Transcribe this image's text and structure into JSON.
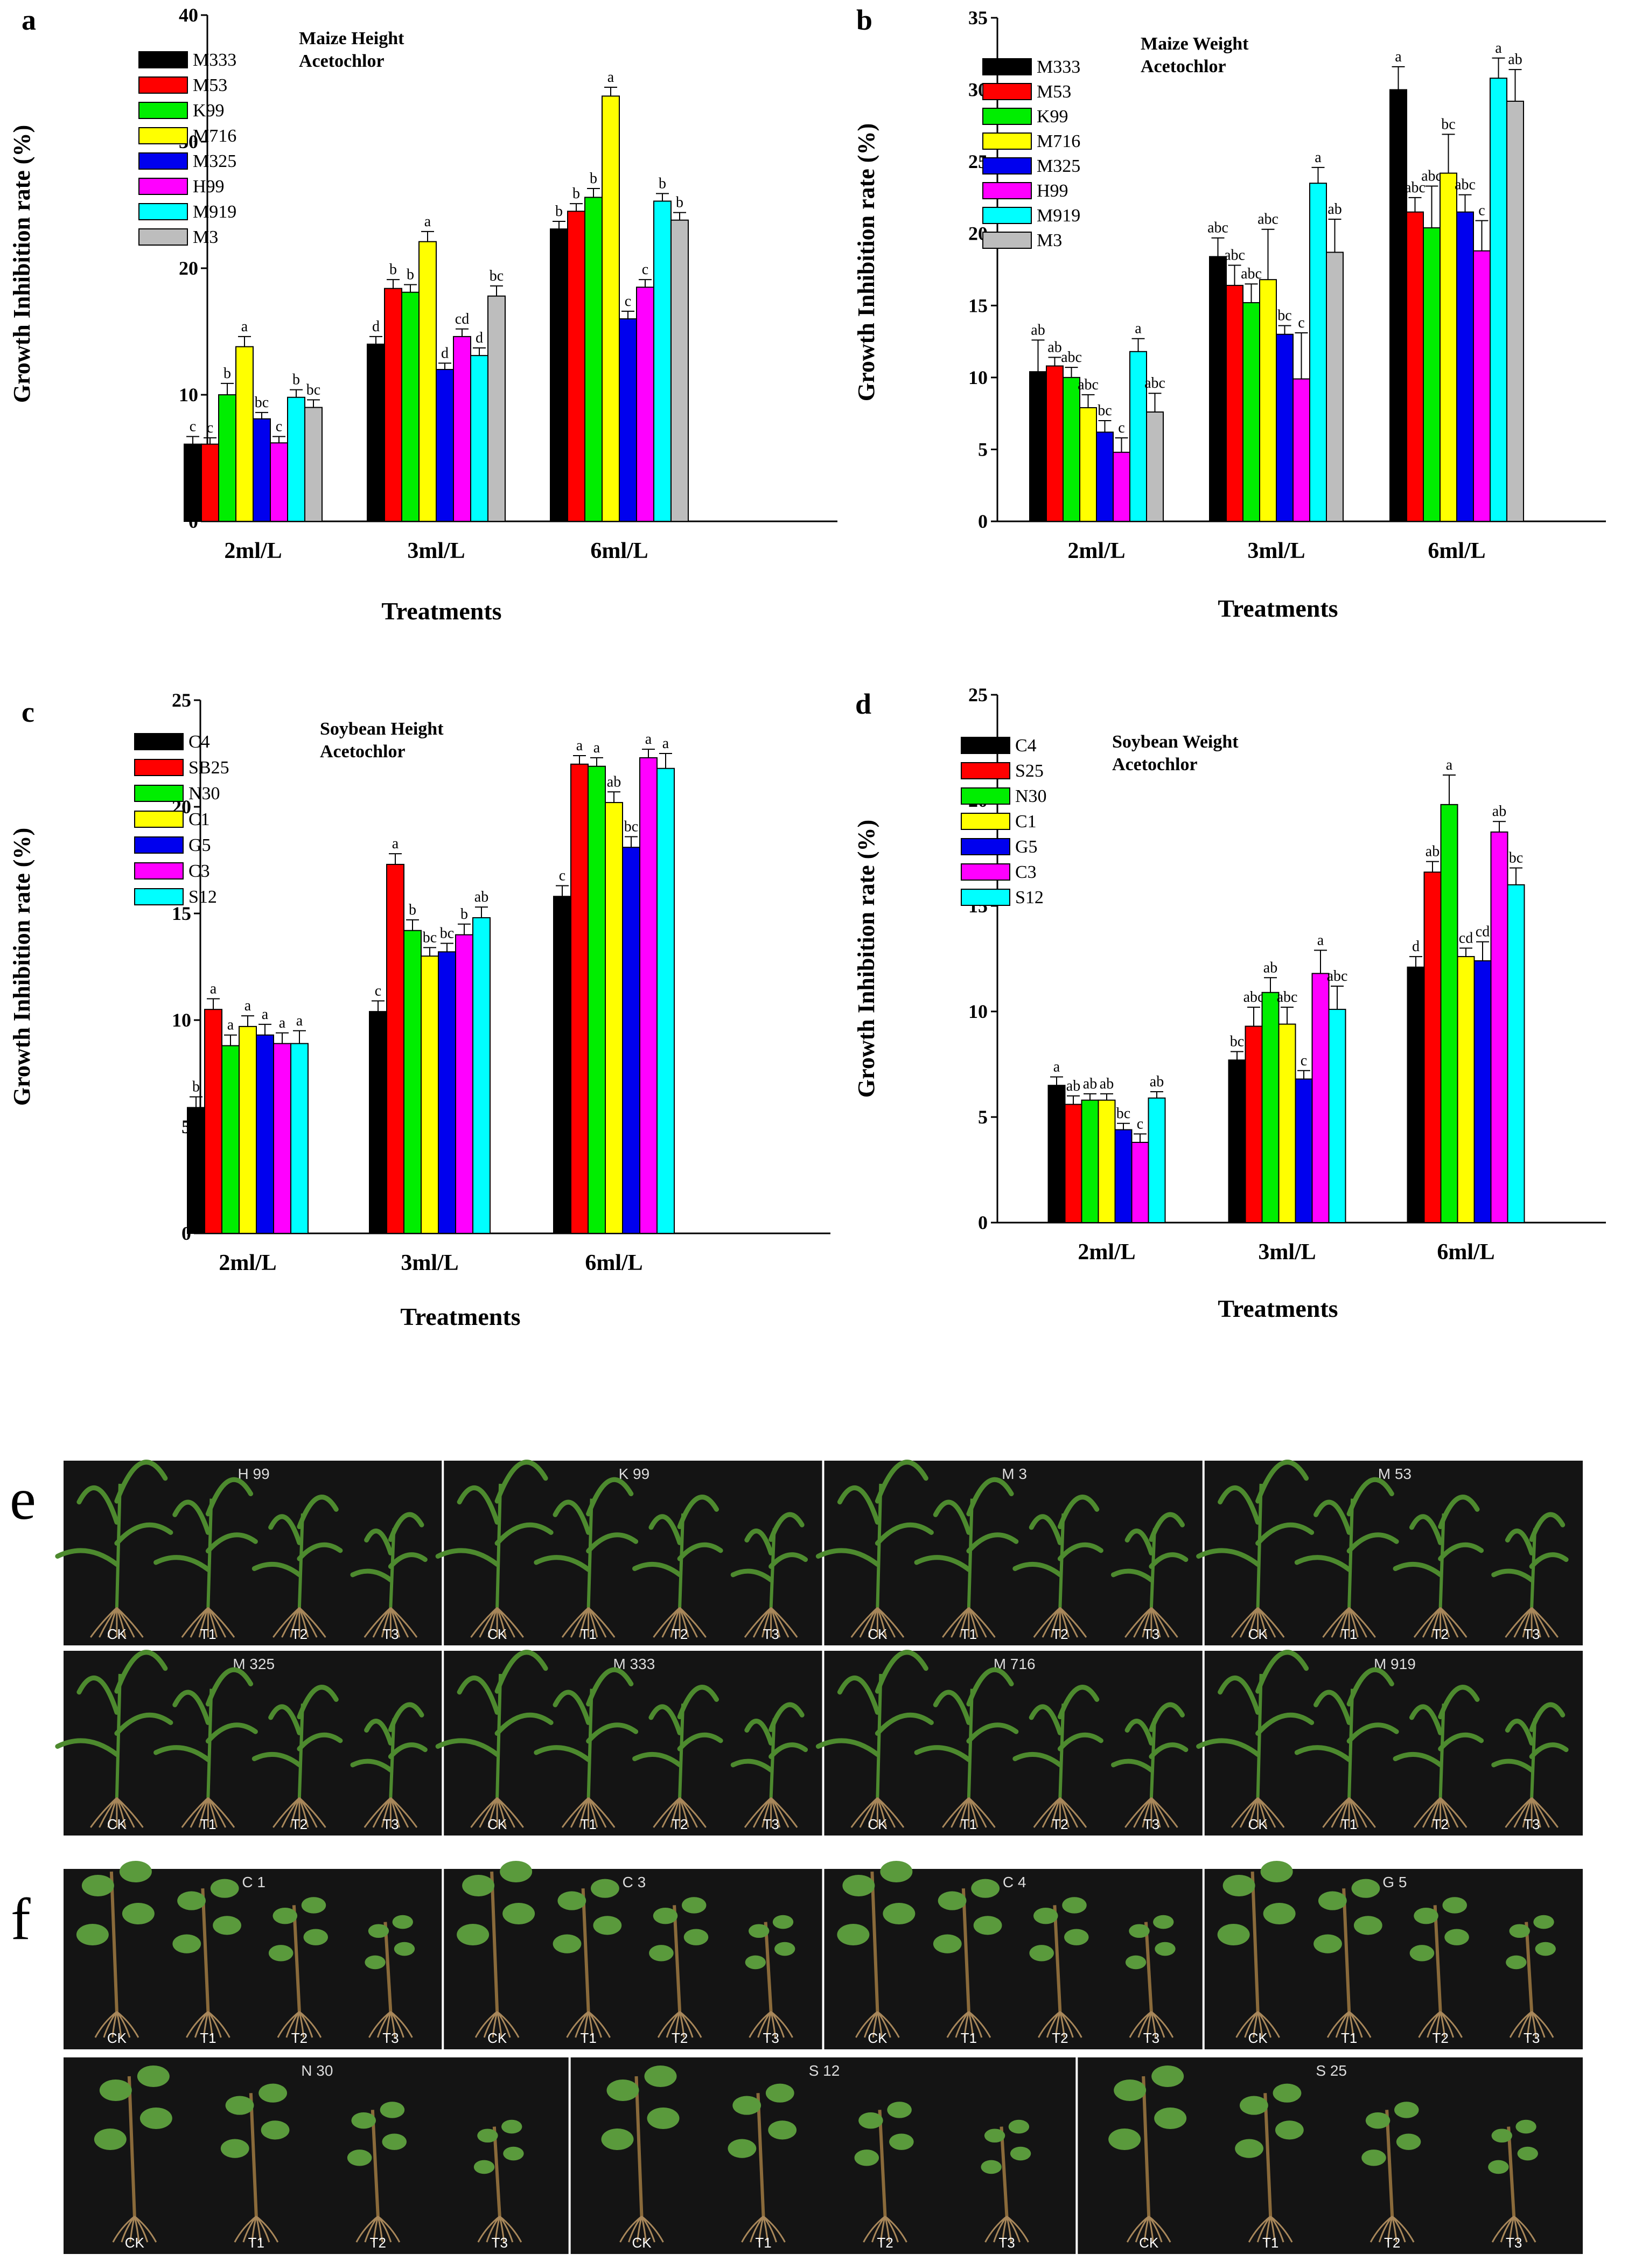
{
  "figure": {
    "colors": {
      "black": "#000000",
      "red": "#ff0000",
      "green": "#00ee00",
      "yellow": "#ffff00",
      "blue": "#0000ee",
      "magenta": "#ff00ff",
      "cyan": "#00ffff",
      "gray": "#bdbdbd",
      "photo_bg": "#141414",
      "leaf": "#4d8a2e",
      "soy_leaf": "#5a9a3c",
      "root": "#a8875a",
      "stem": "#8a6a3a"
    }
  },
  "chart_data": [
    {
      "panel": "a",
      "type": "bar",
      "title": "Maize Height\nAcetochlor",
      "xlabel": "Treatments",
      "ylabel": "Growth Inhibition rate (%)",
      "ylim": [
        0,
        40
      ],
      "ticks": [
        0,
        10,
        20,
        30,
        40
      ],
      "categories": [
        "2ml/L",
        "3ml/L",
        "6ml/L"
      ],
      "series": [
        {
          "name": "M333",
          "color": "#000000",
          "values": [
            6.1,
            14.0,
            23.1
          ],
          "errors": [
            0.6,
            0.6,
            0.6
          ],
          "letters": [
            "c",
            "d",
            "b"
          ]
        },
        {
          "name": "M53",
          "color": "#ff0000",
          "values": [
            6.1,
            18.4,
            24.5
          ],
          "errors": [
            0.5,
            0.7,
            0.6
          ],
          "letters": [
            "c",
            "b",
            "b"
          ]
        },
        {
          "name": "K99",
          "color": "#00ee00",
          "values": [
            10.0,
            18.1,
            25.6
          ],
          "errors": [
            0.9,
            0.6,
            0.7
          ],
          "letters": [
            "b",
            "b",
            "b"
          ]
        },
        {
          "name": "M716",
          "color": "#ffff00",
          "values": [
            13.8,
            22.1,
            33.6
          ],
          "errors": [
            0.8,
            0.8,
            0.7
          ],
          "letters": [
            "a",
            "a",
            "a"
          ]
        },
        {
          "name": "M325",
          "color": "#0000ee",
          "values": [
            8.1,
            12.0,
            16.0
          ],
          "errors": [
            0.5,
            0.5,
            0.6
          ],
          "letters": [
            "bc",
            "d",
            "c"
          ]
        },
        {
          "name": "H99",
          "color": "#ff00ff",
          "values": [
            6.2,
            14.6,
            18.5
          ],
          "errors": [
            0.5,
            0.6,
            0.6
          ],
          "letters": [
            "c",
            "cd",
            "c"
          ]
        },
        {
          "name": "M919",
          "color": "#00ffff",
          "values": [
            9.8,
            13.1,
            25.3
          ],
          "errors": [
            0.6,
            0.6,
            0.6
          ],
          "letters": [
            "b",
            "d",
            "b"
          ]
        },
        {
          "name": "M3",
          "color": "#bdbdbd",
          "values": [
            9.0,
            17.8,
            23.8
          ],
          "errors": [
            0.6,
            0.8,
            0.6
          ],
          "letters": [
            "bc",
            "bc",
            "b"
          ]
        }
      ]
    },
    {
      "panel": "b",
      "type": "bar",
      "title": "Maize Weight\nAcetochlor",
      "xlabel": "Treatments",
      "ylabel": "Growth Inhibition rate (%)",
      "ylim": [
        0,
        35
      ],
      "ticks": [
        0,
        5,
        10,
        15,
        20,
        25,
        30,
        35
      ],
      "categories": [
        "2ml/L",
        "3ml/L",
        "6ml/L"
      ],
      "series": [
        {
          "name": "M333",
          "color": "#000000",
          "values": [
            10.4,
            18.4,
            30.0
          ],
          "errors": [
            2.2,
            1.3,
            1.6
          ],
          "letters": [
            "ab",
            "abc",
            "a"
          ]
        },
        {
          "name": "M53",
          "color": "#ff0000",
          "values": [
            10.8,
            16.4,
            21.5
          ],
          "errors": [
            0.6,
            1.4,
            1.0
          ],
          "letters": [
            "ab",
            "abc",
            "abc"
          ]
        },
        {
          "name": "K99",
          "color": "#00ee00",
          "values": [
            10.0,
            15.2,
            20.4
          ],
          "errors": [
            0.7,
            1.3,
            2.9
          ],
          "letters": [
            "abc",
            "abc",
            "abc"
          ]
        },
        {
          "name": "M716",
          "color": "#ffff00",
          "values": [
            7.9,
            16.8,
            24.2
          ],
          "errors": [
            0.9,
            3.5,
            2.7
          ],
          "letters": [
            "abc",
            "abc",
            "bc"
          ]
        },
        {
          "name": "M325",
          "color": "#0000ee",
          "values": [
            6.2,
            13.0,
            21.5
          ],
          "errors": [
            0.8,
            0.6,
            1.2
          ],
          "letters": [
            "bc",
            "bc",
            "abc"
          ]
        },
        {
          "name": "H99",
          "color": "#ff00ff",
          "values": [
            4.8,
            9.9,
            18.8
          ],
          "errors": [
            1.0,
            3.2,
            2.1
          ],
          "letters": [
            "c",
            "c",
            "c"
          ]
        },
        {
          "name": "M919",
          "color": "#00ffff",
          "values": [
            11.8,
            23.5,
            30.8
          ],
          "errors": [
            0.9,
            1.1,
            1.4
          ],
          "letters": [
            "a",
            "a",
            "a"
          ]
        },
        {
          "name": "M3",
          "color": "#bdbdbd",
          "values": [
            7.6,
            18.7,
            29.2
          ],
          "errors": [
            1.3,
            2.3,
            2.2
          ],
          "letters": [
            "abc",
            "ab",
            "ab"
          ]
        }
      ]
    },
    {
      "panel": "c",
      "type": "bar",
      "title": "Soybean Height\nAcetochlor",
      "xlabel": "Treatments",
      "ylabel": "Growth Inhibition rate (%)",
      "ylim": [
        0,
        25
      ],
      "ticks": [
        0,
        5,
        10,
        15,
        20,
        25
      ],
      "categories": [
        "2ml/L",
        "3ml/L",
        "6ml/L"
      ],
      "series": [
        {
          "name": "C4",
          "color": "#000000",
          "values": [
            5.9,
            10.4,
            15.8
          ],
          "errors": [
            0.5,
            0.5,
            0.5
          ],
          "letters": [
            "b",
            "c",
            "c"
          ]
        },
        {
          "name": "SB25",
          "color": "#ff0000",
          "values": [
            10.5,
            17.3,
            22.0
          ],
          "errors": [
            0.5,
            0.5,
            0.4
          ],
          "letters": [
            "a",
            "a",
            "a"
          ]
        },
        {
          "name": "N30",
          "color": "#00ee00",
          "values": [
            8.8,
            14.2,
            21.9
          ],
          "errors": [
            0.5,
            0.5,
            0.4
          ],
          "letters": [
            "a",
            "b",
            "a"
          ]
        },
        {
          "name": "C1",
          "color": "#ffff00",
          "values": [
            9.7,
            13.0,
            20.2
          ],
          "errors": [
            0.5,
            0.4,
            0.5
          ],
          "letters": [
            "a",
            "bc",
            "ab"
          ]
        },
        {
          "name": "G5",
          "color": "#0000ee",
          "values": [
            9.3,
            13.2,
            18.1
          ],
          "errors": [
            0.5,
            0.4,
            0.5
          ],
          "letters": [
            "a",
            "bc",
            "bc"
          ]
        },
        {
          "name": "C3",
          "color": "#ff00ff",
          "values": [
            8.9,
            14.0,
            22.3
          ],
          "errors": [
            0.5,
            0.5,
            0.4
          ],
          "letters": [
            "a",
            "b",
            "a"
          ]
        },
        {
          "name": "S12",
          "color": "#00ffff",
          "values": [
            8.9,
            14.8,
            21.8
          ],
          "errors": [
            0.6,
            0.5,
            0.7
          ],
          "letters": [
            "a",
            "ab",
            "a"
          ]
        }
      ]
    },
    {
      "panel": "d",
      "type": "bar",
      "title": "Soybean Weight\nAcetochlor",
      "xlabel": "Treatments",
      "ylabel": "Growth Inhibition rate (%)",
      "ylim": [
        0,
        25
      ],
      "ticks": [
        0,
        5,
        10,
        15,
        20,
        25
      ],
      "categories": [
        "2ml/L",
        "3ml/L",
        "6ml/L"
      ],
      "series": [
        {
          "name": "C4",
          "color": "#000000",
          "values": [
            6.5,
            7.7,
            12.1
          ],
          "errors": [
            0.4,
            0.4,
            0.5
          ],
          "letters": [
            "a",
            "bc",
            "d"
          ]
        },
        {
          "name": "S25",
          "color": "#ff0000",
          "values": [
            5.6,
            9.3,
            16.6
          ],
          "errors": [
            0.4,
            0.9,
            0.5
          ],
          "letters": [
            "ab",
            "abc",
            "ab"
          ]
        },
        {
          "name": "N30",
          "color": "#00ee00",
          "values": [
            5.8,
            10.9,
            19.8
          ],
          "errors": [
            0.3,
            0.7,
            1.4
          ],
          "letters": [
            "ab",
            "ab",
            "a"
          ]
        },
        {
          "name": "C1",
          "color": "#ffff00",
          "values": [
            5.8,
            9.4,
            12.6
          ],
          "errors": [
            0.3,
            0.8,
            0.4
          ],
          "letters": [
            "ab",
            "abc",
            "cd"
          ]
        },
        {
          "name": "G5",
          "color": "#0000ee",
          "values": [
            4.4,
            6.8,
            12.4
          ],
          "errors": [
            0.3,
            0.4,
            0.9
          ],
          "letters": [
            "bc",
            "c",
            "cd"
          ]
        },
        {
          "name": "C3",
          "color": "#ff00ff",
          "values": [
            3.8,
            11.8,
            18.5
          ],
          "errors": [
            0.4,
            1.1,
            0.5
          ],
          "letters": [
            "c",
            "a",
            "ab"
          ]
        },
        {
          "name": "S12",
          "color": "#00ffff",
          "values": [
            5.9,
            10.1,
            16.0
          ],
          "errors": [
            0.3,
            1.1,
            0.8
          ],
          "letters": [
            "ab",
            "abc",
            "bc"
          ]
        }
      ]
    }
  ],
  "photos": {
    "e": {
      "label": "e",
      "row1": [
        {
          "title": "H 99",
          "tags": [
            "CK",
            "T1",
            "T2",
            "T3"
          ]
        },
        {
          "title": "K 99",
          "tags": [
            "CK",
            "T1",
            "T2",
            "T3"
          ]
        },
        {
          "title": "M 3",
          "tags": [
            "CK",
            "T1",
            "T2",
            "T3"
          ]
        },
        {
          "title": "M 53",
          "tags": [
            "CK",
            "T1",
            "T2",
            "T3"
          ]
        }
      ],
      "row2": [
        {
          "title": "M 325",
          "tags": [
            "CK",
            "T1",
            "T2",
            "T3"
          ]
        },
        {
          "title": "M 333",
          "tags": [
            "CK",
            "T1",
            "T2",
            "T3"
          ]
        },
        {
          "title": "M 716",
          "tags": [
            "CK",
            "T1",
            "T2",
            "T3"
          ]
        },
        {
          "title": "M 919",
          "tags": [
            "CK",
            "T1",
            "T2",
            "T3"
          ]
        }
      ]
    },
    "f": {
      "label": "f",
      "row1": [
        {
          "title": "C 1",
          "tags": [
            "CK",
            "T1",
            "T2",
            "T3"
          ]
        },
        {
          "title": "C 3",
          "tags": [
            "CK",
            "T1",
            "T2",
            "T3"
          ]
        },
        {
          "title": "C 4",
          "tags": [
            "CK",
            "T1",
            "T2",
            "T3"
          ]
        },
        {
          "title": "G 5",
          "tags": [
            "CK",
            "T1",
            "T2",
            "T3"
          ]
        }
      ],
      "row2": [
        {
          "title": "N 30",
          "tags": [
            "CK",
            "T1",
            "T2",
            "T3"
          ]
        },
        {
          "title": "S 12",
          "tags": [
            "CK",
            "T1",
            "T2",
            "T3"
          ]
        },
        {
          "title": "S 25",
          "tags": [
            "CK",
            "T1",
            "T2",
            "T3"
          ]
        }
      ]
    }
  }
}
